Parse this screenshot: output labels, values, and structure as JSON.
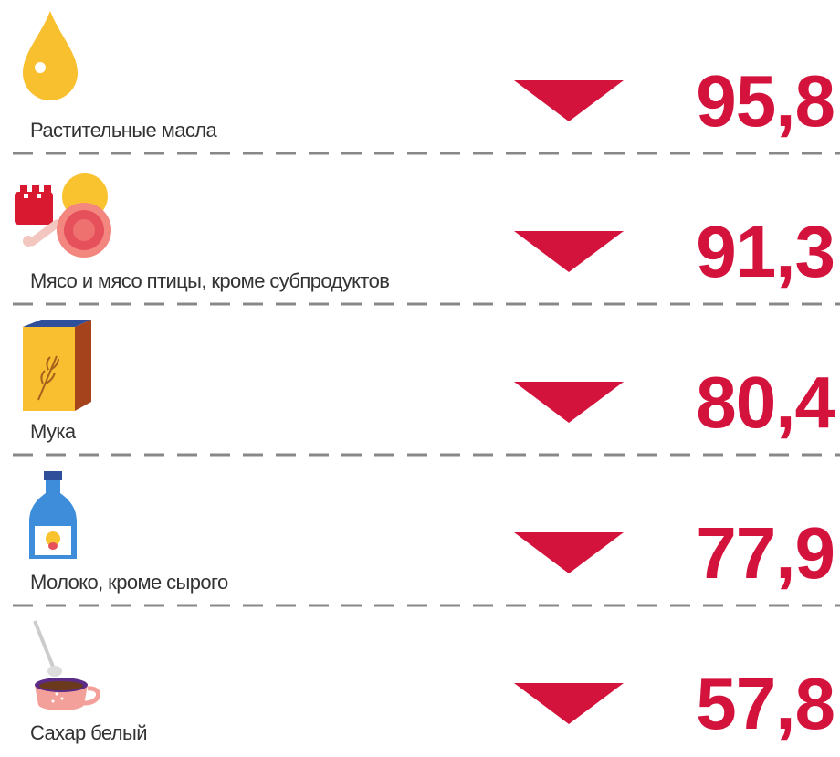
{
  "items": [
    {
      "label": "Растительные масла",
      "value": "95,8"
    },
    {
      "label": "Мясо и мясо птицы, кроме субпродуктов",
      "value": "91,3"
    },
    {
      "label": "Мука",
      "value": "80,4"
    },
    {
      "label": "Молоко, кроме сырого",
      "value": "77,9"
    },
    {
      "label": "Сахар белый",
      "value": "57,8"
    }
  ]
}
